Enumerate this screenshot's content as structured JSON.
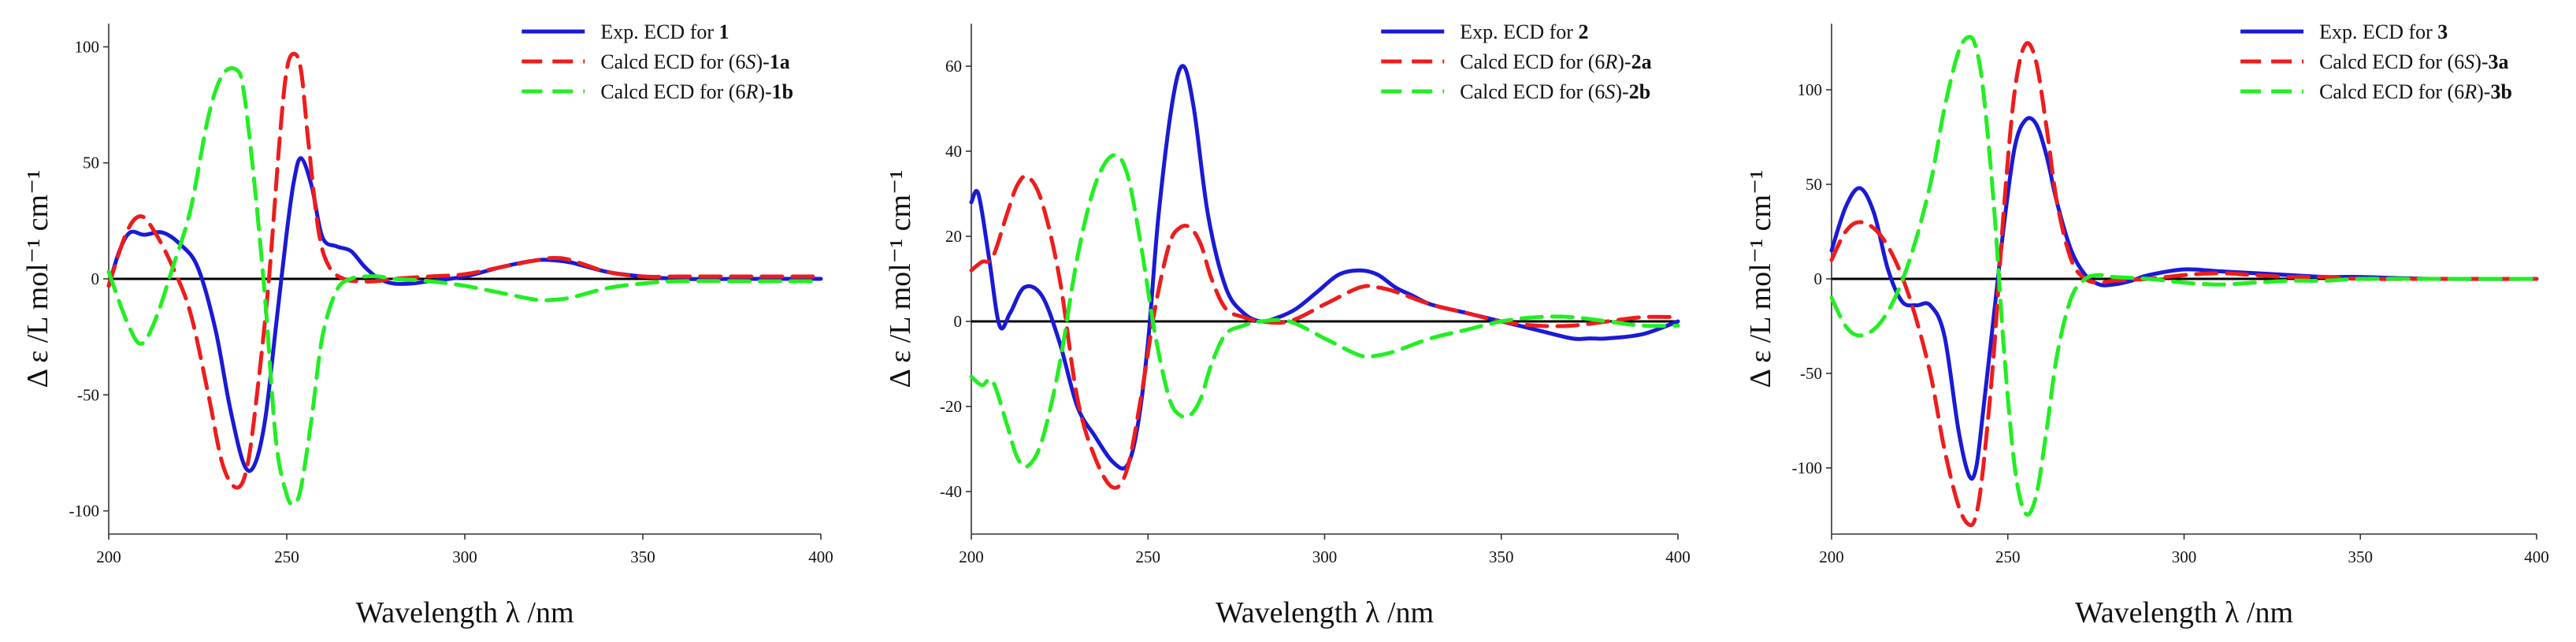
{
  "chart_data": [
    {
      "type": "line",
      "xlabel": "Wavelength λ /nm",
      "ylabel": "Δ ε /L mol⁻¹ cm⁻¹",
      "xlim": [
        200,
        400
      ],
      "ylim": [
        -110,
        110
      ],
      "xticks": [
        200,
        250,
        300,
        350,
        400
      ],
      "yticks": [
        -100,
        -50,
        0,
        50,
        100
      ],
      "legend_position": "top-right",
      "series": [
        {
          "name": "Exp. ECD for 1",
          "legend": [
            {
              "t": "Exp. ECD for "
            },
            {
              "t": "1",
              "b": true
            }
          ],
          "color": "#1a1ad6",
          "dash": "solid",
          "x": [
            200,
            203,
            206,
            210,
            215,
            220,
            225,
            230,
            234,
            238,
            241,
            244,
            247,
            250,
            252,
            254,
            257,
            260,
            264,
            268,
            272,
            276,
            280,
            285,
            290,
            300,
            310,
            320,
            325,
            330,
            340,
            350,
            360,
            380,
            400
          ],
          "y": [
            -3,
            12,
            20,
            19,
            20,
            15,
            5,
            -22,
            -55,
            -80,
            -80,
            -60,
            -20,
            20,
            42,
            52,
            40,
            18,
            14,
            12,
            5,
            0,
            -2,
            -2,
            -1,
            1,
            5,
            8,
            8,
            7,
            3,
            1,
            0,
            0,
            0
          ]
        },
        {
          "name": "Calcd ECD for (6S)-1a",
          "legend": [
            {
              "t": "Calcd ECD for ("
            },
            {
              "t": "6",
              "i": false
            },
            {
              "t": "S",
              "i": true
            },
            {
              "t": ")-"
            },
            {
              "t": "1a",
              "b": true
            }
          ],
          "color": "#ee1c1c",
          "dash": "long",
          "x": [
            200,
            205,
            209,
            213,
            218,
            223,
            228,
            232,
            236,
            239,
            242,
            245,
            248,
            250,
            252,
            254,
            256,
            259,
            262,
            266,
            270,
            275,
            280,
            290,
            300,
            310,
            320,
            325,
            330,
            340,
            350,
            360,
            380,
            400
          ],
          "y": [
            -3,
            20,
            27,
            20,
            5,
            -15,
            -50,
            -80,
            -90,
            -80,
            -45,
            0,
            60,
            90,
            97,
            90,
            60,
            20,
            5,
            0,
            -1,
            -1,
            0,
            1,
            2,
            5,
            8,
            9,
            8,
            3,
            1,
            1,
            1,
            1
          ]
        },
        {
          "name": "Calcd ECD for (6R)-1b",
          "legend": [
            {
              "t": "Calcd ECD for ("
            },
            {
              "t": "6",
              "i": false
            },
            {
              "t": "R",
              "i": true
            },
            {
              "t": ")-"
            },
            {
              "t": "1b",
              "b": true
            }
          ],
          "color": "#22ee22",
          "dash": "long",
          "x": [
            200,
            205,
            209,
            213,
            218,
            223,
            228,
            232,
            236,
            238,
            241,
            244,
            247,
            250,
            252,
            254,
            257,
            260,
            264,
            268,
            272,
            276,
            280,
            290,
            300,
            310,
            320,
            325,
            330,
            340,
            350,
            360,
            380,
            400
          ],
          "y": [
            3,
            -18,
            -28,
            -18,
            5,
            30,
            70,
            88,
            90,
            80,
            40,
            -10,
            -70,
            -93,
            -97,
            -90,
            -60,
            -25,
            -5,
            0,
            1,
            1,
            0,
            -1,
            -3,
            -6,
            -9,
            -9,
            -8,
            -4,
            -2,
            -1,
            -1,
            -1
          ]
        }
      ]
    },
    {
      "type": "line",
      "xlabel": "Wavelength λ /nm",
      "ylabel": "Δ ε /L mol⁻¹ cm⁻¹",
      "xlim": [
        200,
        400
      ],
      "ylim": [
        -50,
        70
      ],
      "xticks": [
        200,
        250,
        300,
        350,
        400
      ],
      "yticks": [
        -40,
        -20,
        0,
        20,
        40,
        60
      ],
      "legend_position": "top-right",
      "series": [
        {
          "name": "Exp. ECD for 2",
          "legend": [
            {
              "t": "Exp. ECD for "
            },
            {
              "t": "2",
              "b": true
            }
          ],
          "color": "#1a1ad6",
          "dash": "solid",
          "x": [
            200,
            202,
            205,
            208,
            211,
            215,
            220,
            225,
            230,
            235,
            240,
            244,
            247,
            250,
            253,
            257,
            260,
            263,
            267,
            272,
            277,
            282,
            287,
            292,
            298,
            304,
            310,
            315,
            320,
            325,
            330,
            340,
            350,
            360,
            370,
            375,
            380,
            390,
            400
          ],
          "y": [
            28,
            30,
            15,
            -1,
            2,
            8,
            6,
            -5,
            -20,
            -27,
            -33,
            -34,
            -25,
            -5,
            25,
            52,
            60,
            50,
            25,
            8,
            2,
            0,
            1,
            3,
            7,
            11,
            12,
            11,
            8,
            6,
            4,
            2,
            0,
            -2,
            -4,
            -4,
            -4,
            -3,
            0
          ]
        },
        {
          "name": "Calcd ECD for (6R)-2a",
          "legend": [
            {
              "t": "Calcd ECD for ("
            },
            {
              "t": "6",
              "i": false
            },
            {
              "t": "R",
              "i": true
            },
            {
              "t": ")-"
            },
            {
              "t": "2a",
              "b": true
            }
          ],
          "color": "#ee1c1c",
          "dash": "long",
          "x": [
            200,
            203,
            206,
            210,
            213,
            216,
            220,
            225,
            230,
            235,
            240,
            244,
            248,
            252,
            256,
            259,
            262,
            265,
            268,
            272,
            277,
            282,
            290,
            300,
            310,
            315,
            320,
            330,
            340,
            350,
            360,
            370,
            380,
            390,
            400
          ],
          "y": [
            12,
            14,
            15,
            25,
            32,
            34,
            28,
            10,
            -18,
            -32,
            -39,
            -35,
            -18,
            3,
            18,
            22,
            22,
            18,
            10,
            3,
            1,
            0,
            0,
            4,
            8,
            8,
            7,
            4,
            2,
            0,
            -1,
            -1,
            0,
            1,
            1
          ]
        },
        {
          "name": "Calcd ECD for (6S)-2b",
          "legend": [
            {
              "t": "Calcd ECD for ("
            },
            {
              "t": "6",
              "i": false
            },
            {
              "t": "S",
              "i": true
            },
            {
              "t": ")-"
            },
            {
              "t": "2b",
              "b": true
            }
          ],
          "color": "#22ee22",
          "dash": "long",
          "x": [
            200,
            203,
            206,
            210,
            213,
            216,
            220,
            225,
            230,
            235,
            240,
            244,
            248,
            252,
            256,
            259,
            262,
            265,
            268,
            272,
            277,
            282,
            290,
            300,
            310,
            315,
            320,
            330,
            340,
            350,
            360,
            370,
            380,
            390,
            400
          ],
          "y": [
            -13,
            -15,
            -14,
            -24,
            -32,
            -34,
            -28,
            -10,
            15,
            32,
            39,
            35,
            18,
            -3,
            -18,
            -22,
            -22,
            -18,
            -10,
            -3,
            -1,
            0,
            0,
            -4,
            -8,
            -8,
            -7,
            -4,
            -2,
            0,
            1,
            1,
            0,
            -1,
            -1
          ]
        }
      ]
    },
    {
      "type": "line",
      "xlabel": "Wavelength λ /nm",
      "ylabel": "Δ ε /L mol⁻¹ cm⁻¹",
      "xlim": [
        200,
        400
      ],
      "ylim": [
        -135,
        135
      ],
      "xticks": [
        200,
        250,
        300,
        350,
        400
      ],
      "yticks": [
        -100,
        -50,
        0,
        50,
        100
      ],
      "legend_position": "top-right",
      "series": [
        {
          "name": "Exp. ECD for 3",
          "legend": [
            {
              "t": "Exp. ECD for "
            },
            {
              "t": "3",
              "b": true
            }
          ],
          "color": "#1a1ad6",
          "dash": "solid",
          "x": [
            200,
            204,
            208,
            212,
            216,
            220,
            224,
            228,
            232,
            236,
            239,
            241,
            243,
            246,
            249,
            252,
            255,
            258,
            261,
            264,
            268,
            272,
            276,
            280,
            285,
            290,
            300,
            310,
            320,
            330,
            340,
            350,
            370,
            400
          ],
          "y": [
            15,
            38,
            48,
            35,
            5,
            -12,
            -14,
            -14,
            -30,
            -80,
            -104,
            -100,
            -70,
            -20,
            30,
            70,
            84,
            82,
            65,
            40,
            15,
            2,
            -3,
            -3,
            -1,
            2,
            5,
            4,
            3,
            2,
            1,
            1,
            0,
            0
          ]
        },
        {
          "name": "Calcd ECD for (6S)-3a",
          "legend": [
            {
              "t": "Calcd ECD for ("
            },
            {
              "t": "6",
              "i": false
            },
            {
              "t": "S",
              "i": true
            },
            {
              "t": ")-"
            },
            {
              "t": "3a",
              "b": true
            }
          ],
          "color": "#ee1c1c",
          "dash": "long",
          "x": [
            200,
            204,
            208,
            213,
            218,
            223,
            228,
            232,
            236,
            239,
            241,
            243,
            246,
            249,
            252,
            255,
            258,
            261,
            264,
            268,
            272,
            276,
            280,
            290,
            300,
            310,
            320,
            330,
            340,
            350,
            370,
            400
          ],
          "y": [
            10,
            25,
            30,
            25,
            10,
            -15,
            -50,
            -90,
            -120,
            -130,
            -125,
            -100,
            -40,
            40,
            100,
            124,
            115,
            80,
            40,
            10,
            0,
            -2,
            -1,
            0,
            2,
            3,
            2,
            1,
            1,
            0,
            0,
            0
          ]
        },
        {
          "name": "Calcd ECD for (6R)-3b",
          "legend": [
            {
              "t": "Calcd ECD for ("
            },
            {
              "t": "6",
              "i": false
            },
            {
              "t": "R",
              "i": true
            },
            {
              "t": ")-"
            },
            {
              "t": "3b",
              "b": true
            }
          ],
          "color": "#22ee22",
          "dash": "long",
          "x": [
            200,
            204,
            208,
            213,
            218,
            223,
            228,
            232,
            236,
            239,
            241,
            243,
            246,
            249,
            252,
            255,
            258,
            261,
            264,
            268,
            272,
            276,
            280,
            290,
            300,
            310,
            320,
            330,
            340,
            350,
            370,
            400
          ],
          "y": [
            -10,
            -25,
            -30,
            -25,
            -10,
            15,
            50,
            90,
            120,
            128,
            122,
            100,
            40,
            -40,
            -100,
            -124,
            -115,
            -80,
            -40,
            -10,
            0,
            2,
            1,
            0,
            -2,
            -3,
            -2,
            -1,
            -1,
            0,
            0,
            0
          ]
        }
      ]
    }
  ]
}
